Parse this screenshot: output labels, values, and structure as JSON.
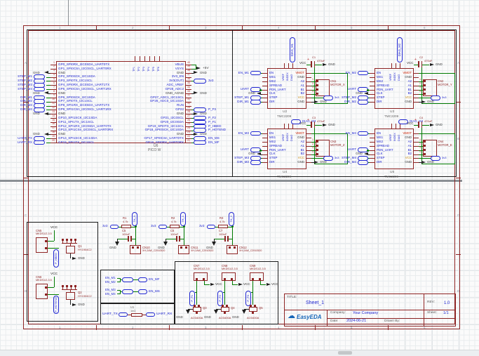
{
  "frame": {
    "columns": [
      "1",
      "2",
      "3",
      "4",
      "5",
      "6"
    ],
    "rows": [
      "A",
      "B",
      "C",
      "D"
    ]
  },
  "title_block": {
    "title_label": "TITLE:",
    "title": "Sheet_1",
    "rev_label": "REV:",
    "rev": "1.0",
    "logo": "EasyEDA",
    "company_label": "Company:",
    "company": "Your Company",
    "sheet_label": "Sheet:",
    "sheet": "1/1",
    "date_label": "Date:",
    "date": "2024-06-21",
    "drawn_label": "Drawn By:",
    "drawn": ""
  },
  "labels": {
    "gnd": "GND",
    "vcc": "VCC",
    "p5v": "+5V",
    "v33": "3v3",
    "uart": "UART",
    "plus": "+"
  },
  "pico": {
    "ref": "U6",
    "part": "PICO W",
    "top_pins": [
      "TP1",
      "TP2",
      "TP3",
      "TP4",
      "TP5",
      "TP6"
    ],
    "left_pins": [
      {
        "n": "1",
        "name": "GP0_SPI0RX_I2C0SDA_UART0TX",
        "type": "none"
      },
      {
        "n": "2",
        "name": "GP1_SPI0CSn_I2C0SCL_UART0RX",
        "type": "none"
      },
      {
        "n": "3",
        "name": "GND",
        "type": "gnd"
      },
      {
        "n": "4",
        "name": "GP2_SPI0SCK_I2C1SDA",
        "type": "port",
        "net": "STEP_M1"
      },
      {
        "n": "5",
        "name": "GP3_SPI0TX_I2C1SCL",
        "type": "port",
        "net": "STEP_M2"
      },
      {
        "n": "6",
        "name": "GP4_SPI0RX_I2C0SDA_UART1TX",
        "type": "port",
        "net": "STEP_M3"
      },
      {
        "n": "7",
        "name": "GP5_SPI0CSn_I2C0SCL_UART1RX",
        "type": "port",
        "net": "STEP_M4"
      },
      {
        "n": "8",
        "name": "GND",
        "type": "gnd"
      },
      {
        "n": "9",
        "name": "GP6_SPI0SCK_I2C1SDA",
        "type": "port",
        "net": "DIR_M1"
      },
      {
        "n": "10",
        "name": "GP7_SPI0TX_I2C1SCL",
        "type": "port",
        "net": "DIR_M2"
      },
      {
        "n": "11",
        "name": "GP8_SPI1RX_I2C0SDA_UART1TX",
        "type": "port",
        "net": "DIR_M3"
      },
      {
        "n": "12",
        "name": "GP9_SPI1CSn_I2C0SCL_UART1RX",
        "type": "port",
        "net": "DIR_M4"
      },
      {
        "n": "13",
        "name": "GND",
        "type": "gnd"
      },
      {
        "n": "14",
        "name": "GP10_SPI1SCK_I2C1SDA",
        "type": "none"
      },
      {
        "n": "15",
        "name": "GP11_SPI1TX_I2C1SCL",
        "type": "none"
      },
      {
        "n": "16",
        "name": "GP12_SPI1RX_I2C0SDA_UART0TX",
        "type": "none"
      },
      {
        "n": "17",
        "name": "GP13_SPI1CSn_I2C0SCL_UART0RX",
        "type": "none"
      },
      {
        "n": "18",
        "name": "GND",
        "type": "gnd"
      },
      {
        "n": "19",
        "name": "GP14_SPI1SCK_I2C1SDA",
        "type": "port",
        "net": "UART_TX"
      },
      {
        "n": "20",
        "name": "GP15_SPI1TX_I2C1SCL",
        "type": "port",
        "net": "UART_RX"
      }
    ],
    "right_pins": [
      {
        "n": "40",
        "name": "VBUS",
        "type": "none"
      },
      {
        "n": "39",
        "name": "VSYS",
        "type": "p5v",
        "net": "+5V"
      },
      {
        "n": "38",
        "name": "GND",
        "type": "gnd"
      },
      {
        "n": "37",
        "name": "3V3_EN",
        "type": "none"
      },
      {
        "n": "36",
        "name": "3V3(OUT)",
        "type": "port",
        "net": "3v3"
      },
      {
        "n": "35",
        "name": "ADC_VREF",
        "type": "none"
      },
      {
        "n": "34",
        "name": "GP28_ADC2",
        "type": "none"
      },
      {
        "n": "33",
        "name": "GND_AGND",
        "type": "gnd"
      },
      {
        "n": "32",
        "name": "GP27_ADC1_I2C1SCL",
        "type": "none"
      },
      {
        "n": "31",
        "name": "GP26_ADC0_I2C1SDA",
        "type": "none"
      },
      {
        "n": "30",
        "name": "RUN",
        "type": "none"
      },
      {
        "n": "29",
        "name": "GP22",
        "type": "port",
        "net": "P_F3"
      },
      {
        "n": "28",
        "name": "GND",
        "type": "gnd"
      },
      {
        "n": "27",
        "name": "GP21_I2C0SCL",
        "type": "port",
        "net": "P_F2"
      },
      {
        "n": "26",
        "name": "GP20_I2C0SDA",
        "type": "port",
        "net": "P_F1"
      },
      {
        "n": "25",
        "name": "GP19_SPI0TX_I2C1SCL",
        "type": "port",
        "net": "P_HBED"
      },
      {
        "n": "24",
        "name": "GP18_SPI0SCK_I2C1SDA",
        "type": "port",
        "net": "P_HOTEND"
      },
      {
        "n": "23",
        "name": "GND",
        "type": "gnd"
      },
      {
        "n": "22",
        "name": "GP17_SPI0CSn_UART0TX",
        "type": "port",
        "net": "EN_MS"
      },
      {
        "n": "21",
        "name": "GP16_SPI0RX_UART0RX",
        "type": "port",
        "net": "EN_MF"
      }
    ]
  },
  "drivers": {
    "part": "TMC2209",
    "left_pins": [
      "EN",
      "MS1",
      "MS2",
      "SPREAD",
      "PDN_UART",
      "CLK",
      "STEP",
      "DIR"
    ],
    "right_pins": [
      "VMOT",
      "GND",
      "A2",
      "A1",
      "B1",
      "B2",
      "VCC",
      "GND"
    ],
    "top_pins": [
      "VREF",
      "INDEX",
      "DIAG"
    ],
    "conn_pins": [
      "1",
      "2",
      "3",
      "4"
    ],
    "cap_value": "470uF",
    "units": [
      {
        "ref": "U2",
        "en": "EN_M1",
        "step": "STEP_M1",
        "dir": "DIR_M1",
        "diag": "DIAG_M1",
        "cap_ref": "C1",
        "conn_ref": "CN1",
        "conn_name": "MOTOR_X"
      },
      {
        "ref": "U3",
        "en": "EN_M2",
        "step": "STEP_M2",
        "dir": "DIR_M2",
        "diag": "DIAG_M2",
        "cap_ref": "C2",
        "conn_ref": "CN2",
        "conn_name": "MOTOR_Y"
      },
      {
        "ref": "U4",
        "en": "EN_M3",
        "step": "STEP_M3",
        "dir": "DIR_M3",
        "diag": "DIAG_M3",
        "cap_ref": "C3",
        "conn_ref": "CN3",
        "conn_name": "MOTOR_Z"
      },
      {
        "ref": "U5",
        "en": "EN_M4",
        "step": "STEP_M4",
        "dir": "DIR_M4",
        "diag": "DIAG_M4",
        "cap_ref": "C4",
        "conn_ref": "CN4",
        "conn_name": "MOTOR_E"
      }
    ]
  },
  "heaters": {
    "conn_part": "MKDS1/2-3.5",
    "q_part": "HY1904C2",
    "units": [
      {
        "conn_ref": "CN5",
        "q_ref": "Q1",
        "net": "P_HBED"
      },
      {
        "conn_ref": "CN6",
        "q_ref": "Q2",
        "net": "P_HOTEND"
      }
    ]
  },
  "en_merge": {
    "rows": [
      {
        "in1": "EN_M1",
        "in2": "EN_M2",
        "out": "EN_MF"
      },
      {
        "in1": "EN_M3",
        "in2": "EN_M4",
        "out": "EN_MS"
      }
    ]
  },
  "uart_link": {
    "left": "UART_TX",
    "right": "UART_RX",
    "res_ref": "U1",
    "res_value": "1kΩ"
  },
  "thermistors": {
    "res_value": "4.7k",
    "cap_value": "100nF",
    "conn_part": "XH-2AW_C2910520",
    "supply": "3v3",
    "units": [
      {
        "res_ref": "R1",
        "cap_ref": "C5",
        "net": "TH_0",
        "conn_ref": "CN10"
      },
      {
        "res_ref": "R2",
        "cap_ref": "C6",
        "net": "TH_1",
        "conn_ref": "CN11"
      },
      {
        "res_ref": "R3",
        "cap_ref": "C7",
        "net": "TH_2",
        "conn_ref": "CN12"
      }
    ]
  },
  "fans": {
    "conn_part": "MKDS1/2-3.5",
    "q_part": "AO3400A",
    "units": [
      {
        "conn_ref": "CN7",
        "q_ref": "Q3",
        "net": "P_F1"
      },
      {
        "conn_ref": "CN8",
        "q_ref": "Q4",
        "net": "P_F2"
      },
      {
        "conn_ref": "CN9",
        "q_ref": "Q5",
        "net": "P_F3"
      }
    ]
  },
  "colors": {
    "symbol": "#8d2323",
    "net": "#2026d2",
    "wire": "#007a00",
    "gnd_text": "#3c3c3c",
    "vmot": "#cc2200",
    "vcc_pin": "#d09010",
    "easyeda": "#1565b8"
  }
}
